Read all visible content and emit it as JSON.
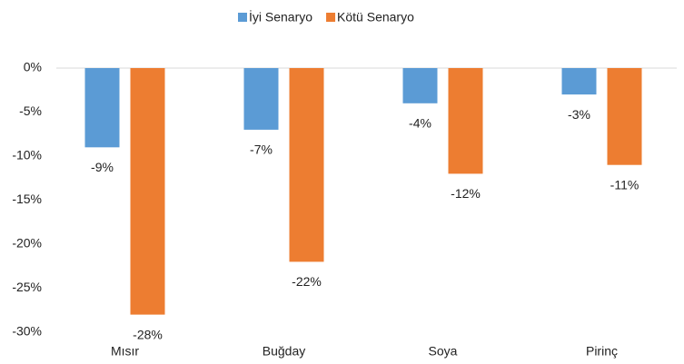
{
  "chart_data": {
    "type": "bar",
    "categories": [
      "Mısır",
      "Buğday",
      "Soya",
      "Pirinç"
    ],
    "series": [
      {
        "name": "İyi Senaryo",
        "color": "#5b9bd5",
        "values": [
          -9,
          -7,
          -4,
          -3
        ],
        "value_labels": [
          "-9%",
          "-7%",
          "-4%",
          "-3%"
        ]
      },
      {
        "name": "Kötü Senaryo",
        "color": "#ed7d31",
        "values": [
          -28,
          -22,
          -12,
          -11
        ],
        "value_labels": [
          "-28%",
          "-22%",
          "-12%",
          "-11%"
        ]
      }
    ],
    "ylim": [
      -30,
      0
    ],
    "yticks": [
      {
        "value": 0,
        "label": "0%"
      },
      {
        "value": -5,
        "label": "-5%"
      },
      {
        "value": -10,
        "label": "-10%"
      },
      {
        "value": -15,
        "label": "-15%"
      },
      {
        "value": -20,
        "label": "-20%"
      },
      {
        "value": -25,
        "label": "-25%"
      },
      {
        "value": -30,
        "label": "-30%"
      }
    ],
    "legend": "top",
    "grid": false
  }
}
